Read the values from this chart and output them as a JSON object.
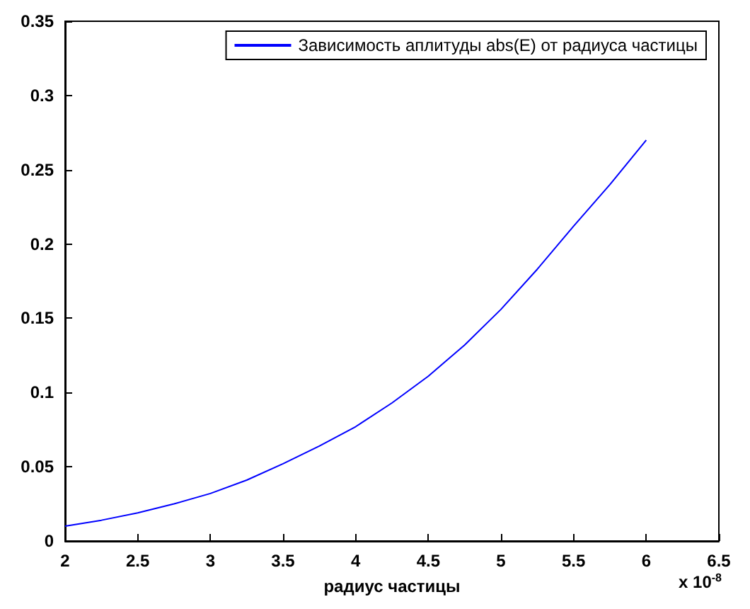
{
  "chart_data": {
    "type": "line",
    "xlabel": "радиус частицы",
    "annotations": [
      "x 10$^{-8}$"
    ],
    "x": [
      2,
      2.25,
      2.5,
      2.75,
      3,
      3.25,
      3.5,
      3.75,
      4,
      4.25,
      4.5,
      4.75,
      5,
      5.25,
      5.5,
      5.75,
      6
    ],
    "series": [
      {
        "name": "Зависимость аплитуды abs(E) от радиуса частицы",
        "color": "#0000ff",
        "values": [
          0.01,
          0.014,
          0.019,
          0.025,
          0.032,
          0.041,
          0.052,
          0.064,
          0.077,
          0.093,
          0.111,
          0.132,
          0.156,
          0.183,
          0.212,
          0.24,
          0.27
        ]
      }
    ],
    "xlim": [
      2,
      6.5
    ],
    "xticks": [
      2,
      2.5,
      3,
      3.5,
      4,
      4.5,
      5,
      5.5,
      6,
      6.5
    ],
    "ylim": [
      0,
      0.35
    ],
    "yticks": [
      0,
      0.05,
      0.1,
      0.15,
      0.2,
      0.25,
      0.3,
      0.35
    ],
    "grid": false,
    "legend": "top right",
    "marker": "none",
    "line_style": "solid"
  }
}
